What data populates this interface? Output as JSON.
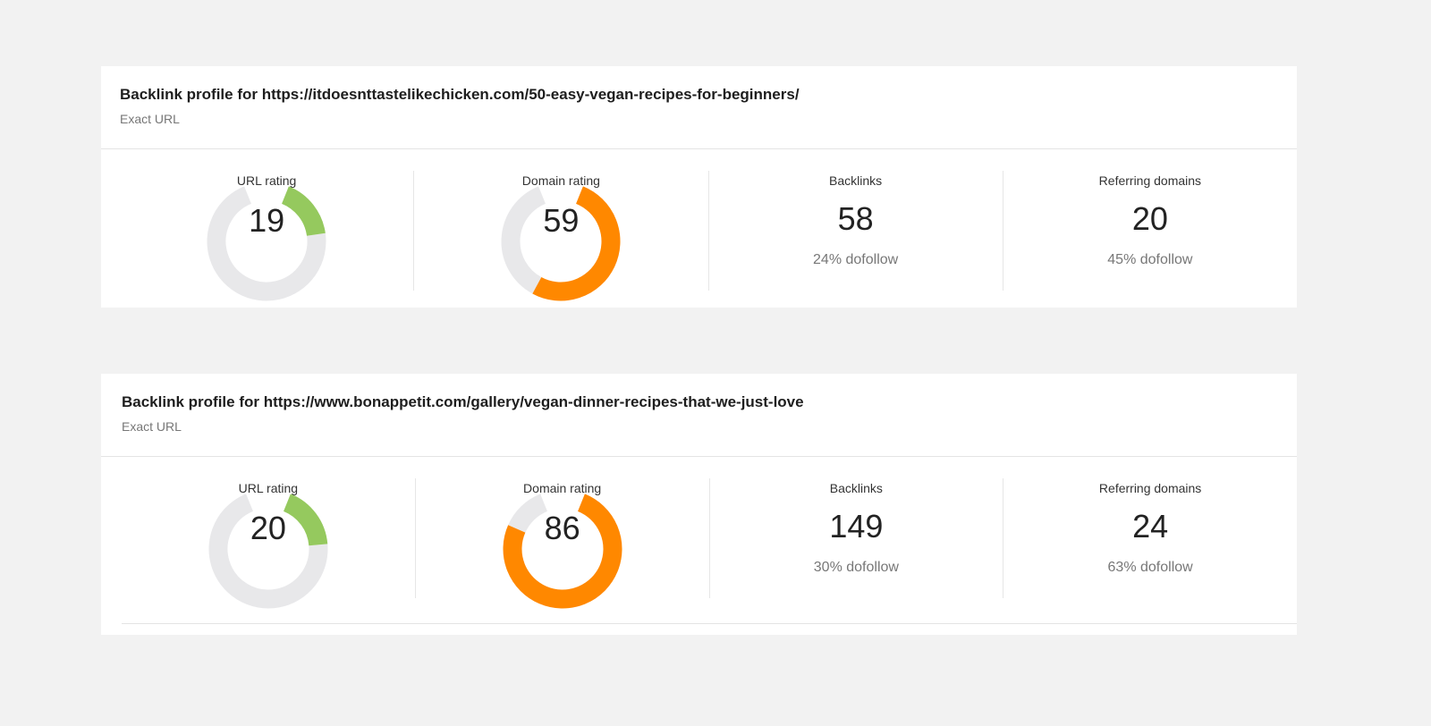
{
  "cards": [
    {
      "title": "Backlink profile for https://itdoesnttastelikechicken.com/50-easy-vegan-recipes-for-beginners/",
      "subtitle": "Exact URL",
      "url_rating": {
        "label": "URL rating",
        "value": "19",
        "fraction": 0.19,
        "color": "#95c95e"
      },
      "domain_rating": {
        "label": "Domain rating",
        "value": "59",
        "fraction": 0.59,
        "color": "#ff8800"
      },
      "backlinks": {
        "label": "Backlinks",
        "value": "58",
        "sub": "24% dofollow"
      },
      "referring_domains": {
        "label": "Referring domains",
        "value": "20",
        "sub": "45% dofollow"
      }
    },
    {
      "title": "Backlink profile for https://www.bonappetit.com/gallery/vegan-dinner-recipes-that-we-just-love",
      "subtitle": "Exact URL",
      "url_rating": {
        "label": "URL rating",
        "value": "20",
        "fraction": 0.2,
        "color": "#95c95e"
      },
      "domain_rating": {
        "label": "Domain rating",
        "value": "86",
        "fraction": 0.86,
        "color": "#ff8800"
      },
      "backlinks": {
        "label": "Backlinks",
        "value": "149",
        "sub": "30% dofollow"
      },
      "referring_domains": {
        "label": "Referring domains",
        "value": "24",
        "sub": "63% dofollow"
      }
    }
  ],
  "track_color": "#e8e8ea"
}
